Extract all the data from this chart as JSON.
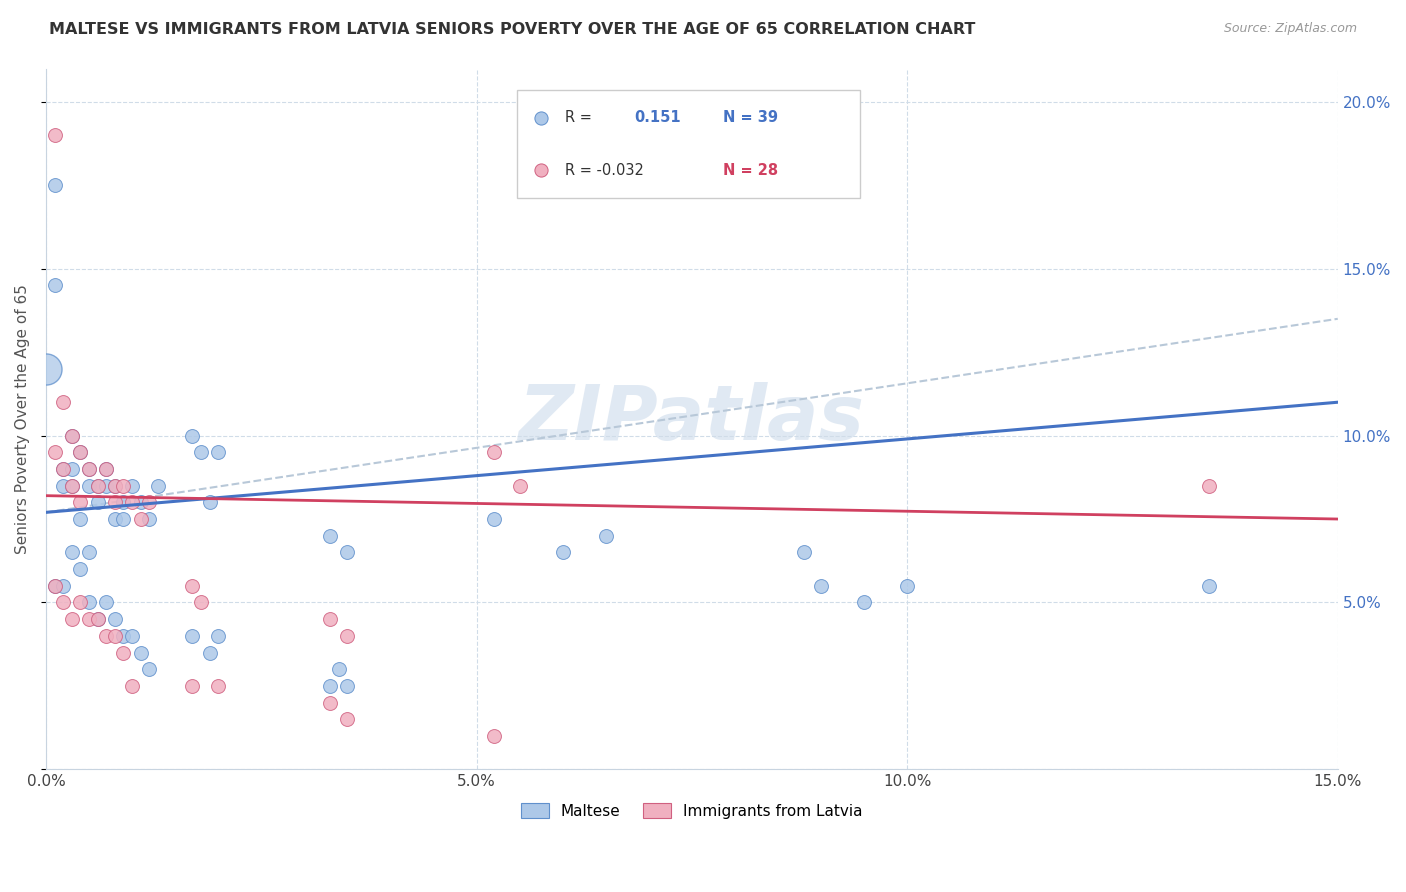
{
  "title": "MALTESE VS IMMIGRANTS FROM LATVIA SENIORS POVERTY OVER THE AGE OF 65 CORRELATION CHART",
  "source": "Source: ZipAtlas.com",
  "ylabel": "Seniors Poverty Over the Age of 65",
  "watermark": "ZIPatlas",
  "blue_label": "Maltese",
  "pink_label": "Immigrants from Latvia",
  "xlim": [
    0.0,
    0.15
  ],
  "ylim": [
    0.0,
    0.21
  ],
  "yticks": [
    0.0,
    0.05,
    0.1,
    0.15,
    0.2
  ],
  "xticks": [
    0.0,
    0.05,
    0.1,
    0.15
  ],
  "blue_scatter_x": [
    0.001,
    0.001,
    0.002,
    0.002,
    0.003,
    0.003,
    0.003,
    0.004,
    0.004,
    0.005,
    0.005,
    0.005,
    0.006,
    0.006,
    0.007,
    0.007,
    0.008,
    0.008,
    0.009,
    0.009,
    0.01,
    0.011,
    0.012,
    0.013,
    0.017,
    0.018,
    0.019,
    0.02,
    0.033,
    0.035,
    0.052,
    0.06,
    0.065,
    0.088,
    0.09,
    0.095,
    0.1,
    0.135
  ],
  "blue_scatter_y": [
    0.175,
    0.145,
    0.09,
    0.085,
    0.1,
    0.09,
    0.085,
    0.095,
    0.075,
    0.09,
    0.085,
    0.065,
    0.085,
    0.08,
    0.09,
    0.085,
    0.085,
    0.075,
    0.08,
    0.075,
    0.085,
    0.08,
    0.075,
    0.085,
    0.1,
    0.095,
    0.08,
    0.095,
    0.07,
    0.065,
    0.075,
    0.065,
    0.07,
    0.065,
    0.055,
    0.05,
    0.055,
    0.055
  ],
  "blue_low_x": [
    0.001,
    0.002,
    0.003,
    0.004,
    0.005,
    0.006,
    0.007,
    0.008,
    0.009,
    0.01,
    0.011,
    0.012,
    0.017,
    0.019,
    0.02,
    0.033,
    0.034,
    0.035
  ],
  "blue_low_y": [
    0.055,
    0.055,
    0.065,
    0.06,
    0.05,
    0.045,
    0.05,
    0.045,
    0.04,
    0.04,
    0.035,
    0.03,
    0.04,
    0.035,
    0.04,
    0.025,
    0.03,
    0.025
  ],
  "pink_scatter_x": [
    0.001,
    0.001,
    0.002,
    0.002,
    0.003,
    0.003,
    0.004,
    0.004,
    0.005,
    0.006,
    0.007,
    0.008,
    0.008,
    0.009,
    0.01,
    0.011,
    0.012,
    0.017,
    0.018,
    0.033,
    0.035,
    0.052,
    0.055,
    0.135
  ],
  "pink_scatter_y": [
    0.19,
    0.095,
    0.11,
    0.09,
    0.1,
    0.085,
    0.095,
    0.08,
    0.09,
    0.085,
    0.09,
    0.085,
    0.08,
    0.085,
    0.08,
    0.075,
    0.08,
    0.055,
    0.05,
    0.045,
    0.04,
    0.095,
    0.085,
    0.085
  ],
  "pink_low_x": [
    0.001,
    0.002,
    0.003,
    0.004,
    0.005,
    0.006,
    0.007,
    0.008,
    0.009,
    0.01,
    0.017,
    0.02,
    0.033,
    0.035,
    0.052
  ],
  "pink_low_y": [
    0.055,
    0.05,
    0.045,
    0.05,
    0.045,
    0.045,
    0.04,
    0.04,
    0.035,
    0.025,
    0.025,
    0.025,
    0.02,
    0.015,
    0.01
  ],
  "big_blue_x": [
    0.0
  ],
  "big_blue_y": [
    0.12
  ],
  "blue_line_x": [
    0.0,
    0.15
  ],
  "blue_line_y": [
    0.077,
    0.11
  ],
  "pink_line_x": [
    0.0,
    0.15
  ],
  "pink_line_y": [
    0.082,
    0.075
  ],
  "dash_line_x": [
    0.0,
    0.15
  ],
  "dash_line_y": [
    0.077,
    0.135
  ],
  "blue_color": "#adc8e8",
  "pink_color": "#f0b0c0",
  "blue_edge_color": "#6090cc",
  "pink_edge_color": "#d06080",
  "blue_line_color": "#4472c4",
  "pink_line_color": "#d04060",
  "dash_line_color": "#b8c8d8",
  "title_fontsize": 11.5,
  "source_fontsize": 9,
  "watermark_color": "#c8d8ea",
  "watermark_fontsize": 55,
  "marker_size": 100,
  "big_marker_size": 500,
  "legend_r_blue": "R =",
  "legend_val_blue": "0.151",
  "legend_n_blue": "N = 39",
  "legend_r_pink": "R = -0.032",
  "legend_n_pink": "N = 28"
}
